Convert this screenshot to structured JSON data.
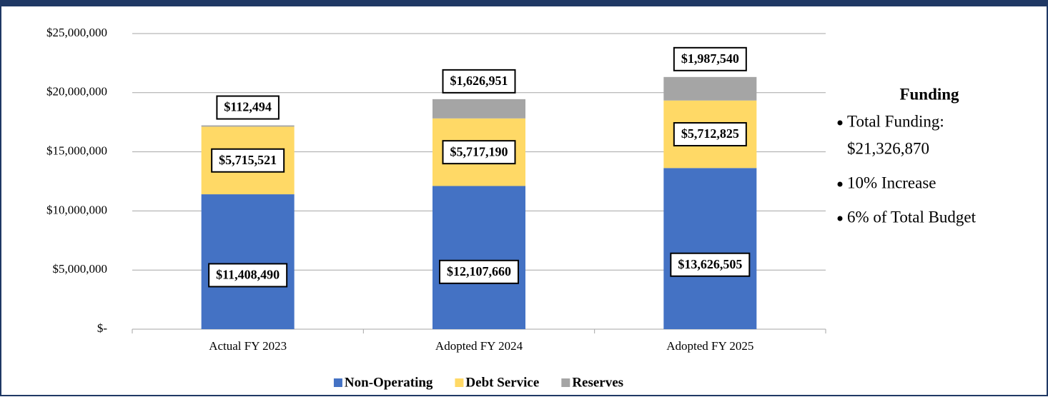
{
  "chart_data": {
    "type": "stacked_bar",
    "categories": [
      "Actual FY 2023",
      "Adopted FY 2024",
      "Adopted FY 2025"
    ],
    "series": [
      {
        "name": "Non-Operating",
        "color": "#4472c4",
        "values": [
          11408490,
          12107660,
          13626505
        ],
        "value_labels": [
          "$11,408,490",
          "$12,107,660",
          "$13,626,505"
        ]
      },
      {
        "name": "Debt Service",
        "color": "#ffd966",
        "values": [
          5715521,
          5717190,
          5712825
        ],
        "value_labels": [
          "$5,715,521",
          "$5,717,190",
          "$5,712,825"
        ]
      },
      {
        "name": "Reserves",
        "color": "#a5a5a5",
        "values": [
          112494,
          1626951,
          1987540
        ],
        "value_labels": [
          "$112,494",
          "$1,626,951",
          "$1,987,540"
        ]
      }
    ],
    "ylim": [
      0,
      25000000
    ],
    "yticks": [
      {
        "value": 0,
        "label": "$-"
      },
      {
        "value": 5000000,
        "label": "$5,000,000"
      },
      {
        "value": 10000000,
        "label": "$10,000,000"
      },
      {
        "value": 15000000,
        "label": "$15,000,000"
      },
      {
        "value": 20000000,
        "label": "$20,000,000"
      },
      {
        "value": 25000000,
        "label": "$25,000,000"
      }
    ],
    "grid": true,
    "legend": "bottom"
  },
  "sidebar": {
    "title": "Funding",
    "bullets": [
      [
        "Total Funding:",
        "$21,326,870"
      ],
      [
        "10% Increase"
      ],
      [
        "6% of Total Budget"
      ]
    ]
  }
}
